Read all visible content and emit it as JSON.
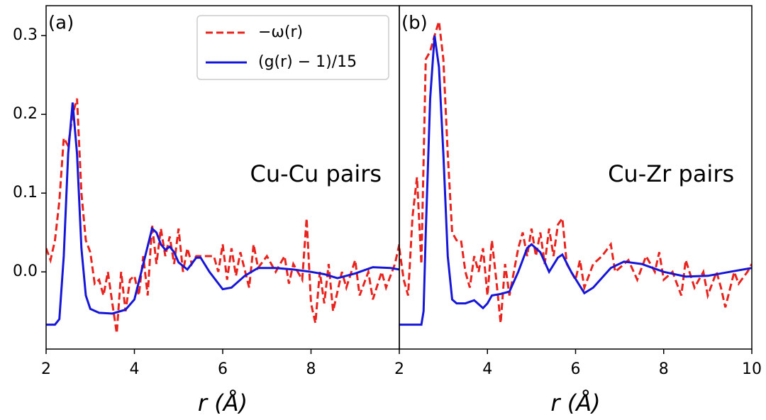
{
  "chart_data": [
    {
      "type": "line",
      "panel_label": "(a)",
      "annotation": "Cu-Cu pairs",
      "xlabel": "r (Å)",
      "xlim": [
        2,
        10
      ],
      "xticks": [
        2,
        4,
        6,
        8
      ],
      "ylim": [
        -0.098,
        0.338
      ],
      "yticks": [
        {
          "value": 0,
          "label": "0.0"
        },
        0.1,
        0.2,
        0.3
      ],
      "legend": "upper right",
      "series": [
        {
          "name": "−ω(r)",
          "color": "#e8221c",
          "dash": true,
          "x": [
            2.0,
            2.1,
            2.2,
            2.3,
            2.4,
            2.5,
            2.6,
            2.7,
            2.8,
            2.9,
            3.0,
            3.1,
            3.2,
            3.3,
            3.4,
            3.5,
            3.6,
            3.7,
            3.8,
            3.9,
            4.0,
            4.1,
            4.2,
            4.3,
            4.4,
            4.5,
            4.6,
            4.7,
            4.8,
            4.9,
            5.0,
            5.1,
            5.2,
            5.3,
            5.4,
            5.6,
            5.8,
            5.9,
            6.0,
            6.1,
            6.2,
            6.3,
            6.4,
            6.6,
            6.7,
            6.8,
            7.0,
            7.2,
            7.4,
            7.5,
            7.6,
            7.8,
            7.9,
            8.0,
            8.1,
            8.2,
            8.3,
            8.4,
            8.5,
            8.7,
            8.8,
            9.0,
            9.1,
            9.3,
            9.4,
            9.6,
            9.7,
            9.9,
            10.0
          ],
          "values": [
            0.03,
            0.015,
            0.04,
            0.09,
            0.17,
            0.16,
            0.2,
            0.22,
            0.1,
            0.04,
            0.025,
            -0.015,
            -0.01,
            -0.03,
            0.0,
            -0.04,
            -0.078,
            0.0,
            -0.05,
            -0.01,
            -0.005,
            -0.03,
            0.02,
            -0.03,
            0.06,
            0.01,
            0.055,
            0.02,
            0.045,
            0.01,
            0.055,
            0.0,
            0.03,
            0.01,
            0.02,
            0.02,
            0.02,
            0.0,
            0.035,
            -0.01,
            0.03,
            -0.005,
            0.025,
            -0.02,
            0.035,
            0.005,
            0.02,
            0.0,
            0.02,
            -0.015,
            0.01,
            -0.01,
            0.068,
            -0.04,
            -0.065,
            0.0,
            -0.04,
            0.01,
            -0.05,
            0.0,
            -0.02,
            0.015,
            -0.03,
            0.0,
            -0.035,
            0.0,
            -0.02,
            0.01,
            0.035
          ]
        },
        {
          "name": "(g(r) − 1)/15",
          "color": "#1616d8",
          "dash": false,
          "x": [
            2.0,
            2.2,
            2.3,
            2.4,
            2.5,
            2.6,
            2.7,
            2.8,
            2.9,
            3.0,
            3.2,
            3.5,
            3.8,
            4.0,
            4.2,
            4.4,
            4.5,
            4.6,
            4.7,
            4.8,
            4.9,
            5.0,
            5.2,
            5.4,
            5.5,
            5.7,
            6.0,
            6.2,
            6.5,
            6.8,
            7.2,
            7.6,
            8.0,
            8.3,
            8.6,
            9.0,
            9.4,
            9.8,
            10.0
          ],
          "values": [
            -0.067,
            -0.067,
            -0.06,
            0.02,
            0.15,
            0.215,
            0.15,
            0.03,
            -0.03,
            -0.047,
            -0.052,
            -0.053,
            -0.048,
            -0.035,
            0.01,
            0.055,
            0.05,
            0.035,
            0.028,
            0.032,
            0.025,
            0.012,
            0.003,
            0.018,
            0.018,
            0.0,
            -0.022,
            -0.02,
            -0.005,
            0.005,
            0.005,
            0.003,
            0.0,
            -0.003,
            -0.008,
            -0.002,
            0.006,
            0.005,
            0.003
          ]
        }
      ]
    },
    {
      "type": "line",
      "panel_label": "(b)",
      "annotation": "Cu-Zr pairs",
      "xlabel": "r (Å)",
      "xlim": [
        2,
        10
      ],
      "xticks": [
        2,
        4,
        6,
        8,
        10
      ],
      "ylim": [
        -0.098,
        0.338
      ],
      "series": [
        {
          "color": "#e8221c",
          "dash": true,
          "x": [
            2.0,
            2.1,
            2.2,
            2.3,
            2.4,
            2.5,
            2.6,
            2.7,
            2.8,
            2.9,
            3.0,
            3.1,
            3.2,
            3.3,
            3.4,
            3.5,
            3.6,
            3.7,
            3.8,
            3.9,
            4.0,
            4.1,
            4.2,
            4.3,
            4.4,
            4.5,
            4.6,
            4.7,
            4.8,
            4.9,
            5.0,
            5.1,
            5.2,
            5.3,
            5.4,
            5.5,
            5.6,
            5.7,
            5.8,
            5.9,
            6.0,
            6.1,
            6.2,
            6.4,
            6.6,
            6.8,
            6.9,
            7.0,
            7.2,
            7.4,
            7.6,
            7.8,
            7.9,
            8.0,
            8.2,
            8.4,
            8.5,
            8.7,
            8.9,
            9.0,
            9.2,
            9.3,
            9.4,
            9.6,
            9.7,
            9.9,
            10.0
          ],
          "values": [
            0.03,
            -0.01,
            -0.03,
            0.07,
            0.12,
            0.01,
            0.27,
            0.28,
            0.3,
            0.318,
            0.27,
            0.15,
            0.05,
            0.04,
            0.04,
            0.0,
            -0.02,
            0.02,
            0.0,
            0.03,
            -0.03,
            0.04,
            -0.01,
            -0.065,
            0.01,
            -0.03,
            0.0,
            0.03,
            0.05,
            0.02,
            0.055,
            0.02,
            0.05,
            0.01,
            0.055,
            0.02,
            0.06,
            0.068,
            0.01,
            0.0,
            -0.01,
            0.015,
            -0.02,
            0.01,
            0.02,
            0.035,
            0.0,
            0.005,
            0.015,
            -0.01,
            0.02,
            0.0,
            0.025,
            -0.01,
            0.0,
            -0.03,
            0.015,
            -0.02,
            0.0,
            -0.03,
            0.0,
            -0.02,
            -0.045,
            0.0,
            -0.015,
            0.0,
            0.01
          ]
        },
        {
          "color": "#1616d8",
          "dash": false,
          "x": [
            2.0,
            2.5,
            2.55,
            2.6,
            2.7,
            2.8,
            2.9,
            3.0,
            3.1,
            3.2,
            3.3,
            3.5,
            3.7,
            3.9,
            4.0,
            4.1,
            4.3,
            4.5,
            4.7,
            4.9,
            5.0,
            5.2,
            5.4,
            5.6,
            5.7,
            5.9,
            6.2,
            6.4,
            6.8,
            7.1,
            7.5,
            8.0,
            8.5,
            9.0,
            9.5,
            10.0
          ],
          "values": [
            -0.067,
            -0.067,
            -0.05,
            0.05,
            0.22,
            0.3,
            0.26,
            0.15,
            0.02,
            -0.035,
            -0.04,
            -0.04,
            -0.036,
            -0.046,
            -0.04,
            -0.03,
            -0.028,
            -0.025,
            0.0,
            0.03,
            0.035,
            0.025,
            0.0,
            0.018,
            0.022,
            0.0,
            -0.027,
            -0.02,
            0.005,
            0.013,
            0.01,
            0.0,
            -0.006,
            -0.005,
            0.0,
            0.005
          ]
        }
      ]
    }
  ]
}
